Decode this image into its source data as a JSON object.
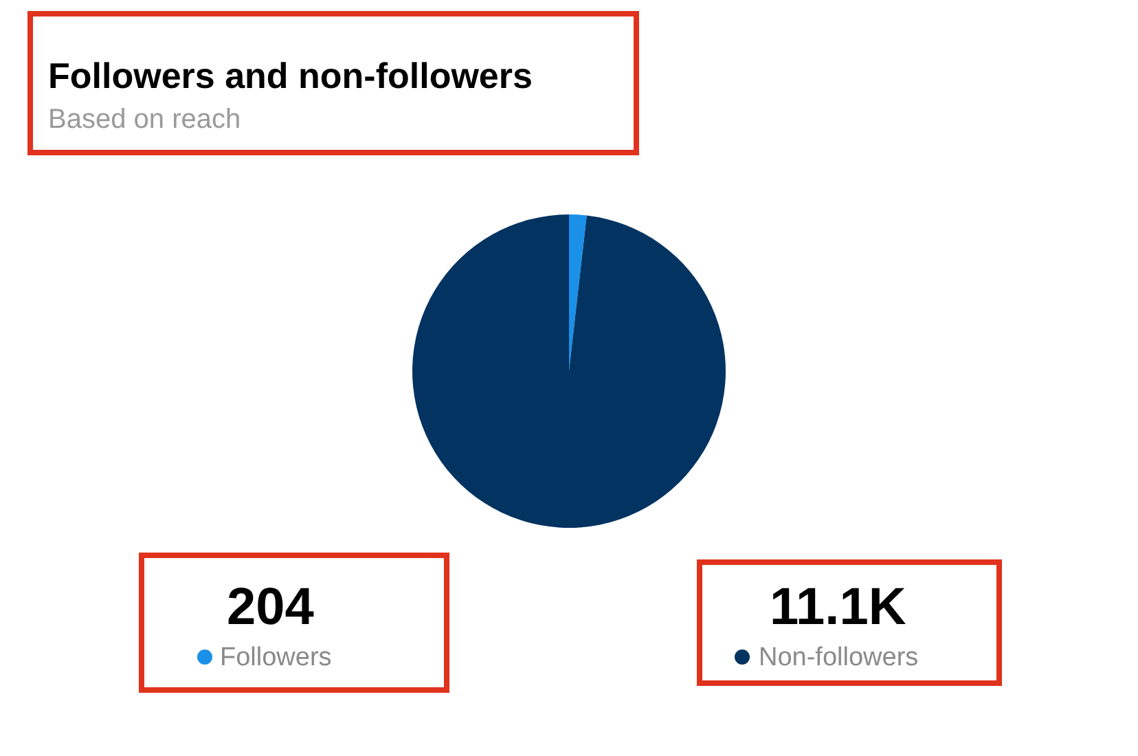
{
  "chart_data": {
    "type": "pie",
    "title": "Followers and non-followers",
    "subtitle": "Based on reach",
    "categories": [
      "Followers",
      "Non-followers"
    ],
    "values": [
      204,
      11100
    ],
    "colors": [
      "#1a90e8",
      "#023361"
    ],
    "value_labels": [
      "204",
      "11.1K"
    ],
    "legend": "bottom"
  }
}
